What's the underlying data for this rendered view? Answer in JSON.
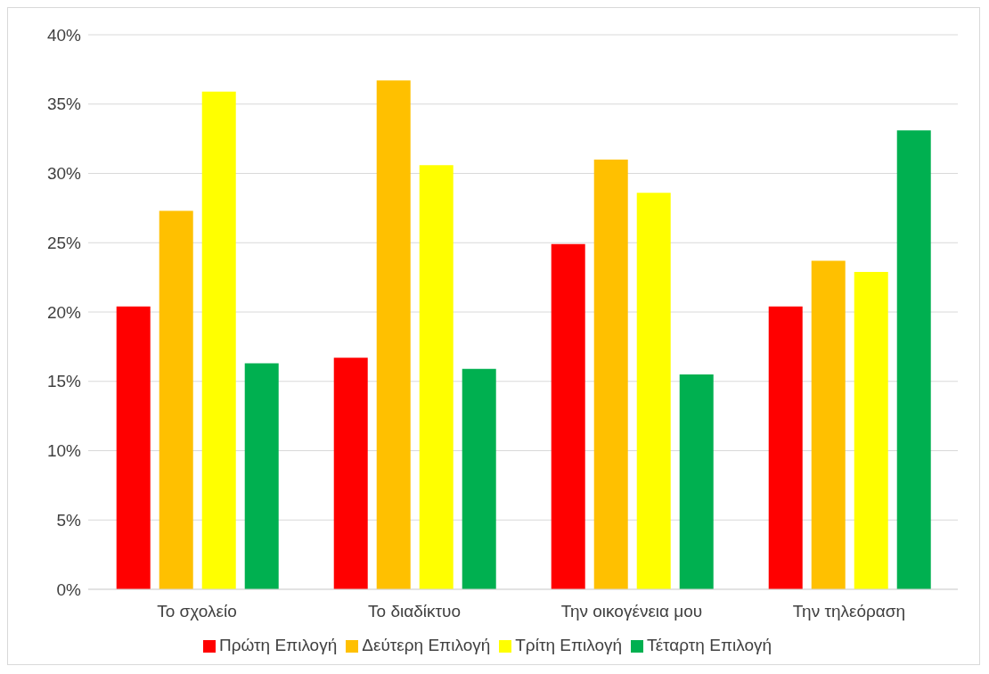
{
  "chart_data": {
    "type": "bar",
    "categories": [
      "Το σχολείο",
      "Το διαδίκτυο",
      "Την οικογένεια μου",
      "Την τηλεόραση"
    ],
    "series": [
      {
        "name": "Πρώτη Επιλογή",
        "color": "#ff0000",
        "values": [
          20.4,
          16.7,
          24.9,
          20.4
        ]
      },
      {
        "name": "Δεύτερη Επιλογή",
        "color": "#ffc000",
        "values": [
          27.3,
          36.7,
          31.0,
          23.7
        ]
      },
      {
        "name": "Τρίτη Επιλογή",
        "color": "#ffff00",
        "values": [
          35.9,
          30.6,
          28.6,
          22.9
        ]
      },
      {
        "name": "Τέταρτη Επιλογή",
        "color": "#00b050",
        "values": [
          16.3,
          15.9,
          15.5,
          33.1
        ]
      }
    ],
    "ylim": [
      0,
      40
    ],
    "yticks": [
      {
        "value": 0,
        "label": "0%"
      },
      {
        "value": 5,
        "label": "5%"
      },
      {
        "value": 10,
        "label": "10%"
      },
      {
        "value": 15,
        "label": "15%"
      },
      {
        "value": 20,
        "label": "20%"
      },
      {
        "value": 25,
        "label": "25%"
      },
      {
        "value": 30,
        "label": "30%"
      },
      {
        "value": 35,
        "label": "35%"
      },
      {
        "value": 40,
        "label": "40%"
      }
    ],
    "grid": "y",
    "legend": "bottom"
  }
}
